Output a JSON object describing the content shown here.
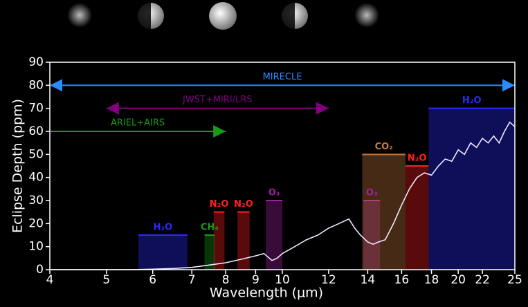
{
  "chart_data": {
    "type": "line",
    "xlabel": "Wavelength (μm)",
    "ylabel": "Eclipse Depth (ppm)",
    "xscale": "log",
    "xlim": [
      4,
      25
    ],
    "ylim": [
      0,
      90
    ],
    "xticks": [
      4,
      5,
      6,
      7,
      8,
      9,
      10,
      12,
      14,
      16,
      18,
      20,
      22,
      25
    ],
    "yticks": [
      0,
      10,
      20,
      30,
      40,
      50,
      60,
      70,
      80,
      90
    ],
    "series": [
      {
        "color": "#f0e8ff",
        "x": [
          4,
          4.5,
          5,
          5.5,
          6,
          6.5,
          7,
          7.5,
          8,
          8.5,
          9,
          9.3,
          9.6,
          9.8,
          10,
          10.5,
          11,
          11.5,
          12,
          12.5,
          13,
          13.3,
          13.6,
          14,
          14.3,
          14.6,
          15,
          15.5,
          16,
          16.5,
          17,
          17.5,
          18,
          18.5,
          19,
          19.5,
          20,
          20.5,
          21,
          21.5,
          22,
          22.5,
          23,
          23.5,
          24,
          24.5,
          25
        ],
        "values": [
          0,
          0,
          0,
          0,
          0.2,
          0.5,
          1,
          2,
          3,
          4.5,
          6,
          7,
          4,
          5,
          7,
          10,
          13,
          15,
          18,
          20,
          22,
          18,
          15,
          12,
          11,
          12,
          13,
          20,
          28,
          35,
          40,
          42,
          41,
          45,
          48,
          47,
          52,
          50,
          55,
          53,
          57,
          55,
          58,
          55,
          60,
          64,
          62
        ]
      }
    ],
    "features": [
      {
        "label": "H₂O",
        "x": [
          5.67,
          6.88
        ],
        "value": 15,
        "color": "#2a2aff"
      },
      {
        "label": "CH₄",
        "x": [
          7.36,
          7.66
        ],
        "value": 15,
        "color": "#1a9a1a"
      },
      {
        "label": "N₂O",
        "x": [
          7.63,
          7.96
        ],
        "value": 25,
        "color": "#ff2020"
      },
      {
        "label": "N₂O",
        "x": [
          8.38,
          8.79
        ],
        "value": 25,
        "color": "#ff2020"
      },
      {
        "label": "O₃",
        "x": [
          9.37,
          10.0
        ],
        "value": 30,
        "color": "#a020a0"
      },
      {
        "label": "O₃",
        "x": [
          13.77,
          14.7
        ],
        "value": 30,
        "color": "#a020a0"
      },
      {
        "label": "CO₂",
        "x": [
          13.7,
          16.25
        ],
        "value": 50,
        "color": "#c8783c"
      },
      {
        "label": "N₂O",
        "x": [
          16.25,
          17.8
        ],
        "value": 45,
        "color": "#ff2020"
      },
      {
        "label": "H₂O",
        "x": [
          17.8,
          25
        ],
        "value": 70,
        "color": "#2a2aff"
      }
    ],
    "instruments": [
      {
        "label": "MIRECLE",
        "x": [
          4,
          25
        ],
        "value": 80,
        "color": "#2a8cff"
      },
      {
        "label": "JWST+MIRI/LRS",
        "x": [
          5,
          12
        ],
        "value": 70,
        "color": "#800080"
      },
      {
        "label": "ARIEL+AIRS",
        "x": [
          4,
          8
        ],
        "value": 60,
        "color": "#1a9a1a"
      }
    ]
  }
}
